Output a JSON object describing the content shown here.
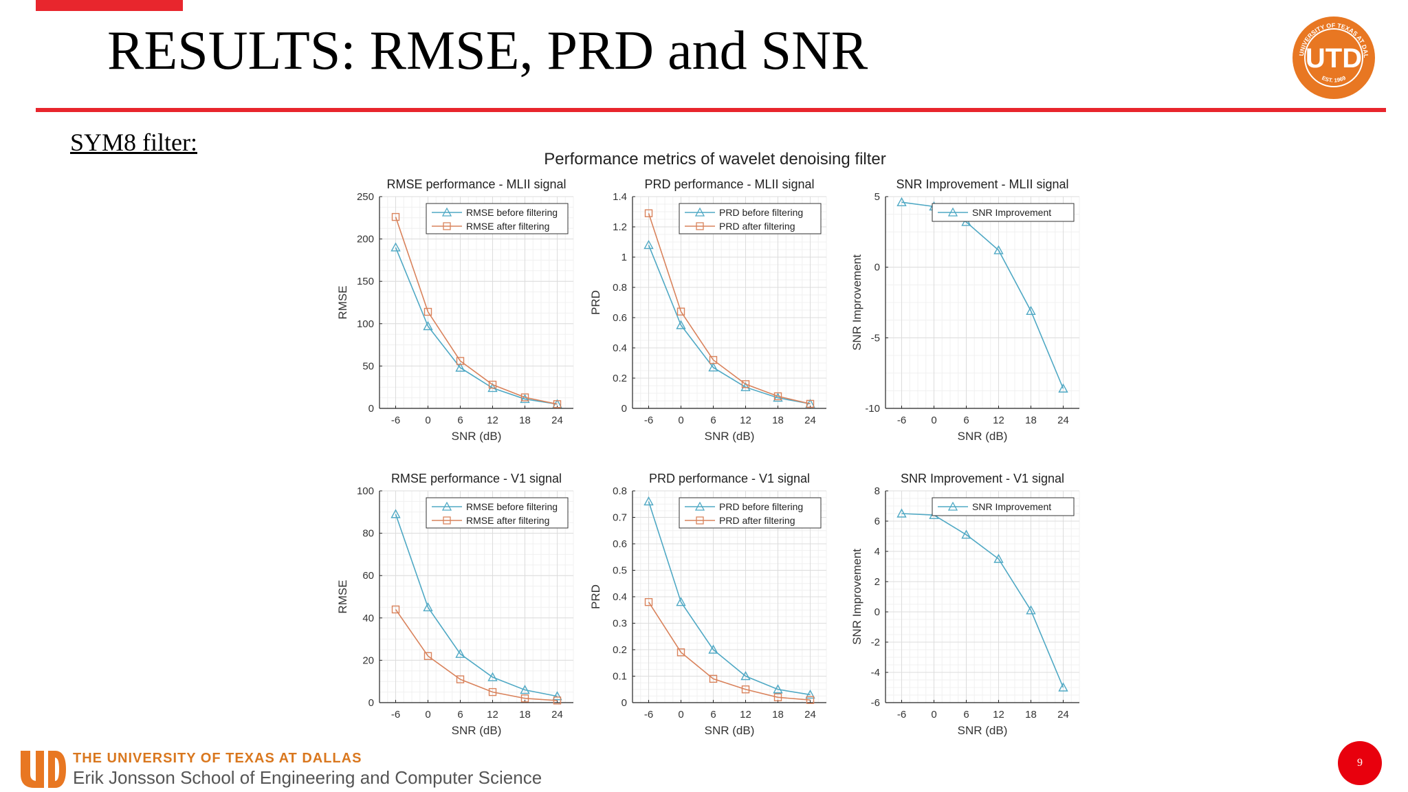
{
  "slide": {
    "title": "RESULTS: RMSE, PRD and SNR",
    "subtitle": "SYM8 filter:",
    "figure_title": "Performance metrics of wavelet denoising filter",
    "footer_line1": "THE UNIVERSITY OF TEXAS AT DALLAS",
    "footer_line2": "Erik Jonsson School of Engineering and Computer Science",
    "page_number": "9",
    "logo_text": "UTD",
    "logo_ring_top": "THE UNIVERSITY OF TEXAS AT DALLAS",
    "logo_ring_bottom": "EST. 1969"
  },
  "colors": {
    "accent_red": "#e8262d",
    "utd_orange": "#e87722",
    "series_blue": "#4ea8c4",
    "series_orange": "#d9825b"
  },
  "chart_data": [
    {
      "type": "line",
      "title": "RMSE performance - MLII signal",
      "xlabel": "SNR (dB)",
      "ylabel": "RMSE",
      "x": [
        -6,
        0,
        6,
        12,
        18,
        24
      ],
      "xlim": [
        -9,
        27
      ],
      "ylim": [
        0,
        250
      ],
      "yticks": [
        0,
        50,
        100,
        150,
        200,
        250
      ],
      "grid": true,
      "legend": "top-right",
      "series": [
        {
          "name": "RMSE before filtering",
          "marker": "triangle",
          "color": "#4ea8c4",
          "values": [
            190,
            97,
            48,
            24,
            11,
            5
          ]
        },
        {
          "name": "RMSE after filtering",
          "marker": "square",
          "color": "#d9825b",
          "values": [
            226,
            114,
            56,
            28,
            13,
            5
          ]
        }
      ]
    },
    {
      "type": "line",
      "title": "PRD performance - MLII signal",
      "xlabel": "SNR (dB)",
      "ylabel": "PRD",
      "x": [
        -6,
        0,
        6,
        12,
        18,
        24
      ],
      "xlim": [
        -9,
        27
      ],
      "ylim": [
        0,
        1.4
      ],
      "yticks": [
        0,
        0.2,
        0.4,
        0.6,
        0.8,
        1,
        1.2,
        1.4
      ],
      "grid": true,
      "legend": "top-right",
      "series": [
        {
          "name": "PRD before filtering",
          "marker": "triangle",
          "color": "#4ea8c4",
          "values": [
            1.08,
            0.55,
            0.27,
            0.14,
            0.07,
            0.03
          ]
        },
        {
          "name": "PRD after filtering",
          "marker": "square",
          "color": "#d9825b",
          "values": [
            1.29,
            0.64,
            0.32,
            0.16,
            0.08,
            0.03
          ]
        }
      ]
    },
    {
      "type": "line",
      "title": "SNR Improvement - MLII signal",
      "xlabel": "SNR (dB)",
      "ylabel": "SNR Improvement",
      "x": [
        -6,
        0,
        6,
        12,
        18,
        24
      ],
      "xlim": [
        -9,
        27
      ],
      "ylim": [
        -10,
        5
      ],
      "yticks": [
        -10,
        -5,
        0,
        5
      ],
      "grid": true,
      "legend": "top-right",
      "series": [
        {
          "name": "SNR Improvement",
          "marker": "triangle",
          "color": "#4ea8c4",
          "values": [
            4.6,
            4.3,
            3.2,
            1.2,
            -3.1,
            -8.6
          ]
        }
      ]
    },
    {
      "type": "line",
      "title": "RMSE performance - V1 signal",
      "xlabel": "SNR (dB)",
      "ylabel": "RMSE",
      "x": [
        -6,
        0,
        6,
        12,
        18,
        24
      ],
      "xlim": [
        -9,
        27
      ],
      "ylim": [
        0,
        100
      ],
      "yticks": [
        0,
        20,
        40,
        60,
        80,
        100
      ],
      "grid": true,
      "legend": "top-right",
      "series": [
        {
          "name": "RMSE before filtering",
          "marker": "triangle",
          "color": "#4ea8c4",
          "values": [
            89,
            45,
            23,
            12,
            6,
            3
          ]
        },
        {
          "name": "RMSE after filtering",
          "marker": "square",
          "color": "#d9825b",
          "values": [
            44,
            22,
            11,
            5,
            2,
            1
          ]
        }
      ]
    },
    {
      "type": "line",
      "title": "PRD performance - V1 signal",
      "xlabel": "SNR (dB)",
      "ylabel": "PRD",
      "x": [
        -6,
        0,
        6,
        12,
        18,
        24
      ],
      "xlim": [
        -9,
        27
      ],
      "ylim": [
        0,
        0.8
      ],
      "yticks": [
        0,
        0.1,
        0.2,
        0.3,
        0.4,
        0.5,
        0.6,
        0.7,
        0.8
      ],
      "grid": true,
      "legend": "top-right",
      "series": [
        {
          "name": "PRD before filtering",
          "marker": "triangle",
          "color": "#4ea8c4",
          "values": [
            0.76,
            0.38,
            0.2,
            0.1,
            0.05,
            0.03
          ]
        },
        {
          "name": "PRD after filtering",
          "marker": "square",
          "color": "#d9825b",
          "values": [
            0.38,
            0.19,
            0.09,
            0.05,
            0.02,
            0.01
          ]
        }
      ]
    },
    {
      "type": "line",
      "title": "SNR Improvement - V1 signal",
      "xlabel": "SNR (dB)",
      "ylabel": "SNR Improvement",
      "x": [
        -6,
        0,
        6,
        12,
        18,
        24
      ],
      "xlim": [
        -9,
        27
      ],
      "ylim": [
        -6,
        8
      ],
      "yticks": [
        -6,
        -4,
        -2,
        0,
        2,
        4,
        6,
        8
      ],
      "grid": true,
      "legend": "top-right",
      "series": [
        {
          "name": "SNR Improvement",
          "marker": "triangle",
          "color": "#4ea8c4",
          "values": [
            6.5,
            6.4,
            5.1,
            3.5,
            0.1,
            -5.0
          ]
        }
      ]
    }
  ]
}
